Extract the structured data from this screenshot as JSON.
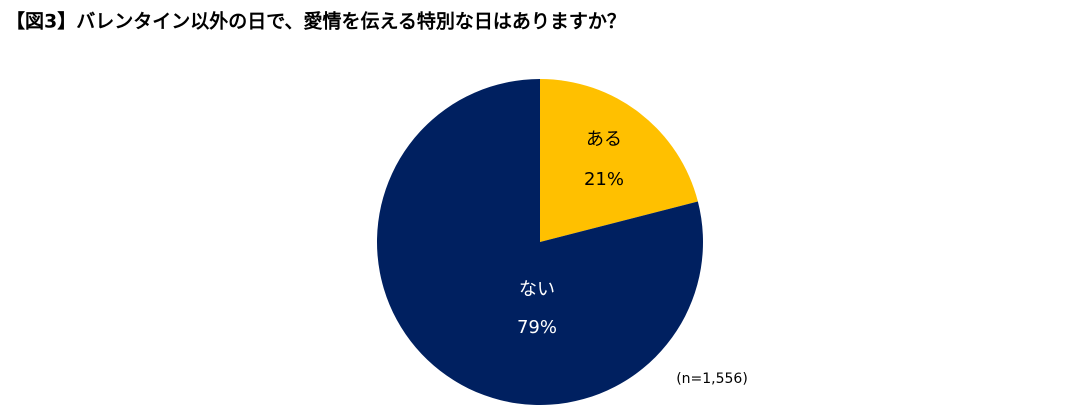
{
  "chart_data": {
    "type": "pie",
    "title": "【図3】バレンタイン以外の日で、愛情を伝える特別な日はありますか？",
    "categories": [
      "ある",
      "ない"
    ],
    "values": [
      21,
      79
    ],
    "value_labels": [
      "21%",
      "79%"
    ],
    "colors": [
      "#ffc000",
      "#002060"
    ],
    "label_color": "#ffffff",
    "note": "(n=1,556)"
  }
}
